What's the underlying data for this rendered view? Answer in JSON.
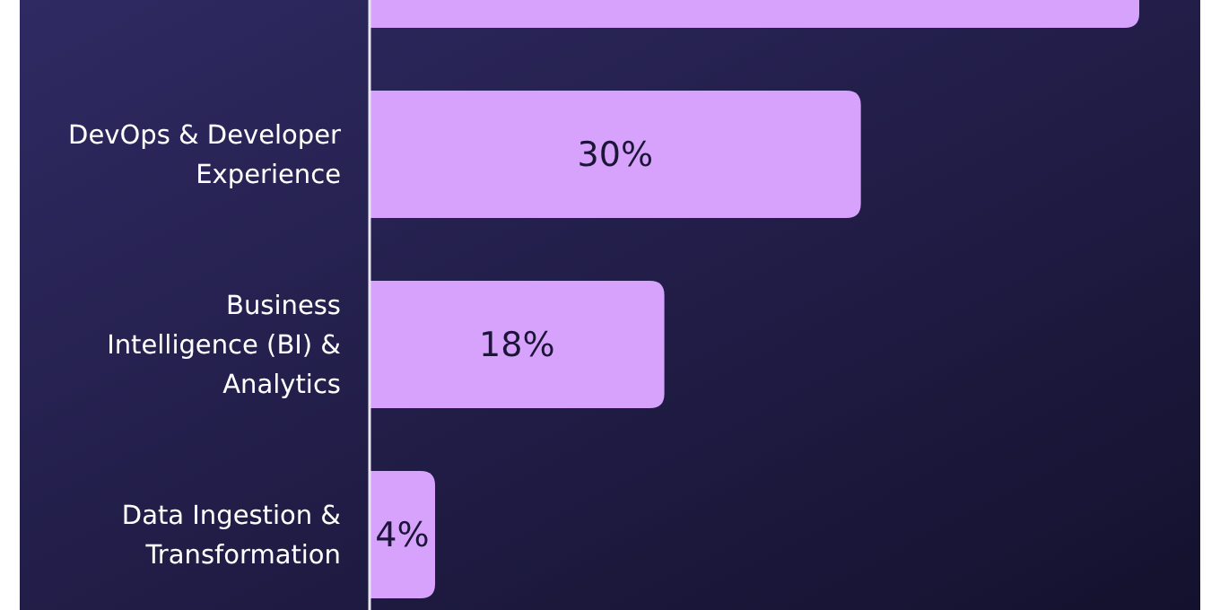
{
  "chart_data": {
    "type": "bar",
    "orientation": "horizontal",
    "categories": [
      null,
      "DevOps & Developer Experience",
      "Business Intelligence (BI) & Analytics",
      "Data Ingestion & Transformation"
    ],
    "values": [
      47,
      30,
      18,
      4
    ],
    "value_labels": [
      null,
      "30%",
      "18%",
      "4%"
    ],
    "color": "#d7a2fb"
  }
}
